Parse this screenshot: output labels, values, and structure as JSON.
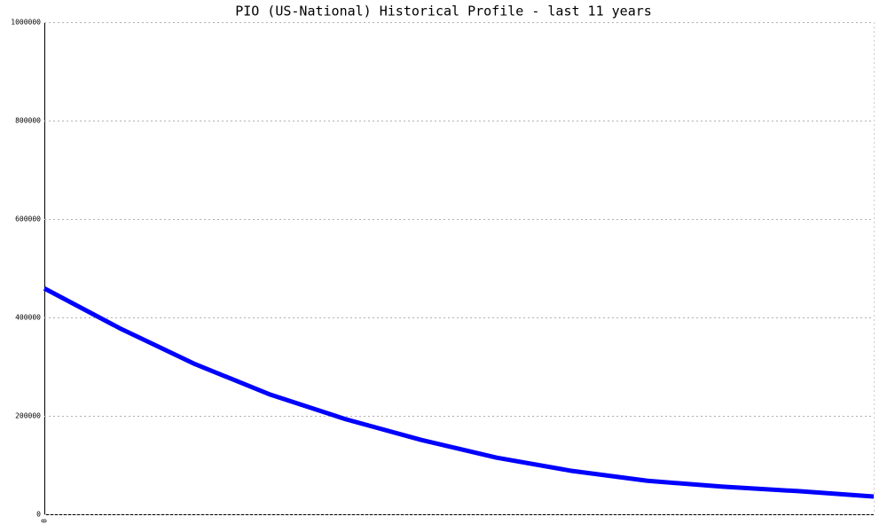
{
  "chart_data": {
    "type": "line",
    "title": "PIO (US-National) Historical Profile - last 11 years",
    "categories": [
      "0",
      null,
      null,
      null,
      null,
      null,
      null,
      null,
      null,
      null,
      null,
      null
    ],
    "series": [
      {
        "name": "PIO",
        "color": "#0000ff",
        "values": [
          459000,
          378000,
          305000,
          243000,
          193000,
          151000,
          115000,
          88000,
          68000,
          56000,
          47000,
          36000
        ]
      }
    ],
    "ylim": [
      0,
      1000000
    ],
    "yticks": [
      0,
      200000,
      400000,
      600000,
      800000,
      1000000
    ],
    "grid": true
  }
}
